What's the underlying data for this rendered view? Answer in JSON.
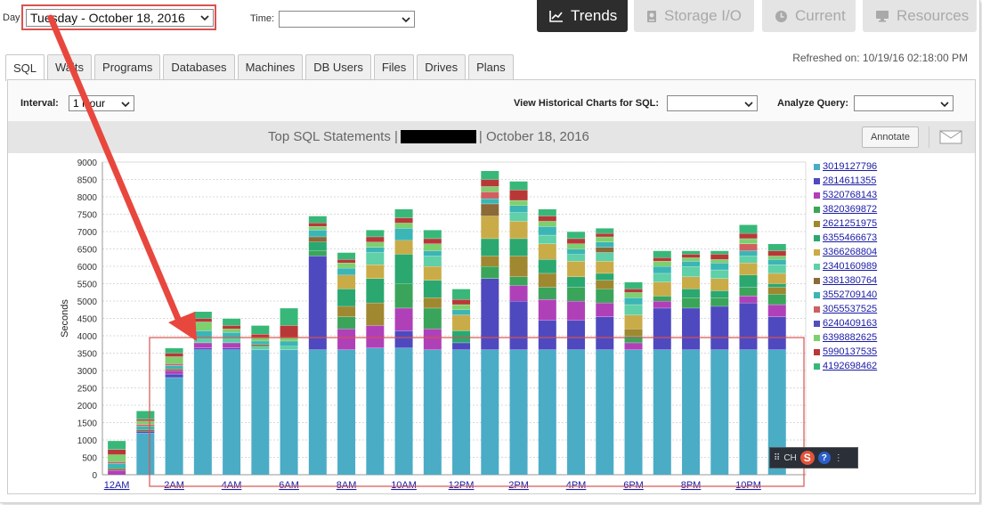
{
  "topbar": {
    "day_label": "Day",
    "day_value": "Tuesday - October 18, 2016",
    "time_label": "Time:",
    "time_value": ""
  },
  "nav": [
    {
      "label": "Trends",
      "icon": "chart-line-icon"
    },
    {
      "label": "Storage I/O",
      "icon": "disk-icon"
    },
    {
      "label": "Current",
      "icon": "clock-icon"
    },
    {
      "label": "Resources",
      "icon": "monitor-icon"
    }
  ],
  "tabs": [
    "SQL",
    "Waits",
    "Programs",
    "Databases",
    "Machines",
    "DB Users",
    "Files",
    "Drives",
    "Plans"
  ],
  "refreshed": "Refreshed on: 10/19/16 02:18:00 PM",
  "controls": {
    "interval_label": "Interval:",
    "interval_value": "1 Hour",
    "view_hist_label": "View Historical Charts for SQL:",
    "view_hist_value": "",
    "analyze_label": "Analyze Query:",
    "analyze_value": ""
  },
  "title_prefix": "Top SQL Statements |",
  "title_suffix": "| October 18, 2016",
  "annotate_label": "Annotate",
  "ime": {
    "lang": "CH",
    "s": "S",
    "q": "?"
  },
  "chart_data": {
    "type": "bar",
    "stacked": true,
    "ylabel": "Seconds",
    "ylim": [
      0,
      9000
    ],
    "yticks": [
      0,
      500,
      1000,
      1500,
      2000,
      2500,
      3000,
      3500,
      4000,
      4500,
      5000,
      5500,
      6000,
      6500,
      7000,
      7500,
      8000,
      8500,
      9000
    ],
    "grid": true,
    "legend_position": "right",
    "x_tick_labels": [
      "12AM",
      "2AM",
      "4AM",
      "6AM",
      "8AM",
      "10AM",
      "12PM",
      "2PM",
      "4PM",
      "6PM",
      "8PM",
      "10PM"
    ],
    "hours": 24,
    "series": [
      {
        "name": "3019127796",
        "color": "#4bacc6",
        "values": [
          0,
          1200,
          2800,
          3600,
          3600,
          3600,
          3600,
          3600,
          3600,
          3650,
          3650,
          3600,
          3600,
          3600,
          3600,
          3600,
          3600,
          3600,
          3600,
          3600,
          3600,
          3600,
          3600,
          3600
        ]
      },
      {
        "name": "2814611355",
        "color": "#4f49c0",
        "values": [
          0,
          50,
          100,
          50,
          50,
          0,
          0,
          2700,
          0,
          0,
          500,
          0,
          200,
          2050,
          1400,
          850,
          850,
          950,
          0,
          1200,
          1200,
          1250,
          1350,
          950
        ]
      },
      {
        "name": "5320768143",
        "color": "#b040b8",
        "values": [
          130,
          0,
          100,
          150,
          150,
          0,
          0,
          0,
          600,
          650,
          650,
          600,
          0,
          0,
          450,
          600,
          550,
          400,
          200,
          200,
          0,
          0,
          200,
          350
        ]
      },
      {
        "name": "3820369872",
        "color": "#3aa55a",
        "values": [
          0,
          0,
          0,
          0,
          0,
          0,
          0,
          150,
          350,
          0,
          700,
          600,
          0,
          350,
          250,
          350,
          400,
          400,
          200,
          150,
          300,
          250,
          250,
          300
        ]
      },
      {
        "name": "2621251975",
        "color": "#a08830",
        "values": [
          0,
          0,
          0,
          0,
          0,
          0,
          0,
          0,
          300,
          650,
          0,
          300,
          0,
          300,
          600,
          400,
          0,
          250,
          200,
          0,
          0,
          0,
          0,
          200
        ]
      },
      {
        "name": "6355466673",
        "color": "#2aa870",
        "values": [
          0,
          0,
          0,
          0,
          0,
          0,
          0,
          250,
          500,
          700,
          850,
          500,
          350,
          500,
          500,
          400,
          300,
          200,
          0,
          0,
          250,
          200,
          350,
          100
        ]
      },
      {
        "name": "3366268804",
        "color": "#c9ac48",
        "values": [
          0,
          0,
          0,
          0,
          0,
          0,
          0,
          0,
          400,
          400,
          400,
          400,
          450,
          650,
          500,
          450,
          450,
          350,
          400,
          400,
          350,
          350,
          350,
          300
        ]
      },
      {
        "name": "2340160989",
        "color": "#5fd0a8",
        "values": [
          0,
          0,
          0,
          150,
          150,
          100,
          100,
          0,
          0,
          350,
          0,
          300,
          0,
          0,
          250,
          250,
          200,
          250,
          300,
          250,
          300,
          250,
          200,
          250
        ]
      },
      {
        "name": "3381380764",
        "color": "#8b6a38",
        "values": [
          50,
          50,
          50,
          0,
          0,
          50,
          0,
          150,
          0,
          0,
          0,
          0,
          0,
          350,
          0,
          0,
          0,
          150,
          0,
          0,
          0,
          0,
          0,
          0
        ]
      },
      {
        "name": "3552709140",
        "color": "#3cb5b5",
        "values": [
          150,
          100,
          100,
          200,
          150,
          100,
          150,
          200,
          200,
          150,
          350,
          150,
          150,
          150,
          200,
          250,
          150,
          150,
          200,
          200,
          150,
          200,
          150,
          150
        ]
      },
      {
        "name": "3055537525",
        "color": "#d06060",
        "values": [
          50,
          50,
          50,
          0,
          0,
          0,
          0,
          0,
          0,
          0,
          0,
          0,
          0,
          200,
          0,
          0,
          0,
          0,
          0,
          0,
          0,
          0,
          200,
          0
        ]
      },
      {
        "name": "6240409163",
        "color": "#5050b8",
        "values": [
          0,
          0,
          0,
          0,
          0,
          0,
          0,
          0,
          0,
          0,
          0,
          0,
          0,
          0,
          0,
          0,
          0,
          0,
          0,
          0,
          0,
          0,
          0,
          0
        ]
      },
      {
        "name": "6398882625",
        "color": "#7dd06e",
        "values": [
          200,
          100,
          200,
          250,
          100,
          100,
          100,
          100,
          150,
          150,
          150,
          200,
          150,
          150,
          150,
          150,
          150,
          150,
          150,
          150,
          100,
          100,
          150,
          100
        ]
      },
      {
        "name": "5990137535",
        "color": "#b83838",
        "values": [
          150,
          50,
          100,
          100,
          100,
          100,
          350,
          100,
          100,
          150,
          150,
          150,
          150,
          200,
          300,
          150,
          150,
          100,
          100,
          100,
          100,
          150,
          150,
          150
        ]
      },
      {
        "name": "4192698462",
        "color": "#38b878",
        "values": [
          250,
          240,
          150,
          200,
          200,
          250,
          500,
          200,
          200,
          200,
          250,
          250,
          300,
          250,
          250,
          200,
          200,
          150,
          200,
          200,
          100,
          100,
          250,
          200
        ]
      }
    ]
  }
}
